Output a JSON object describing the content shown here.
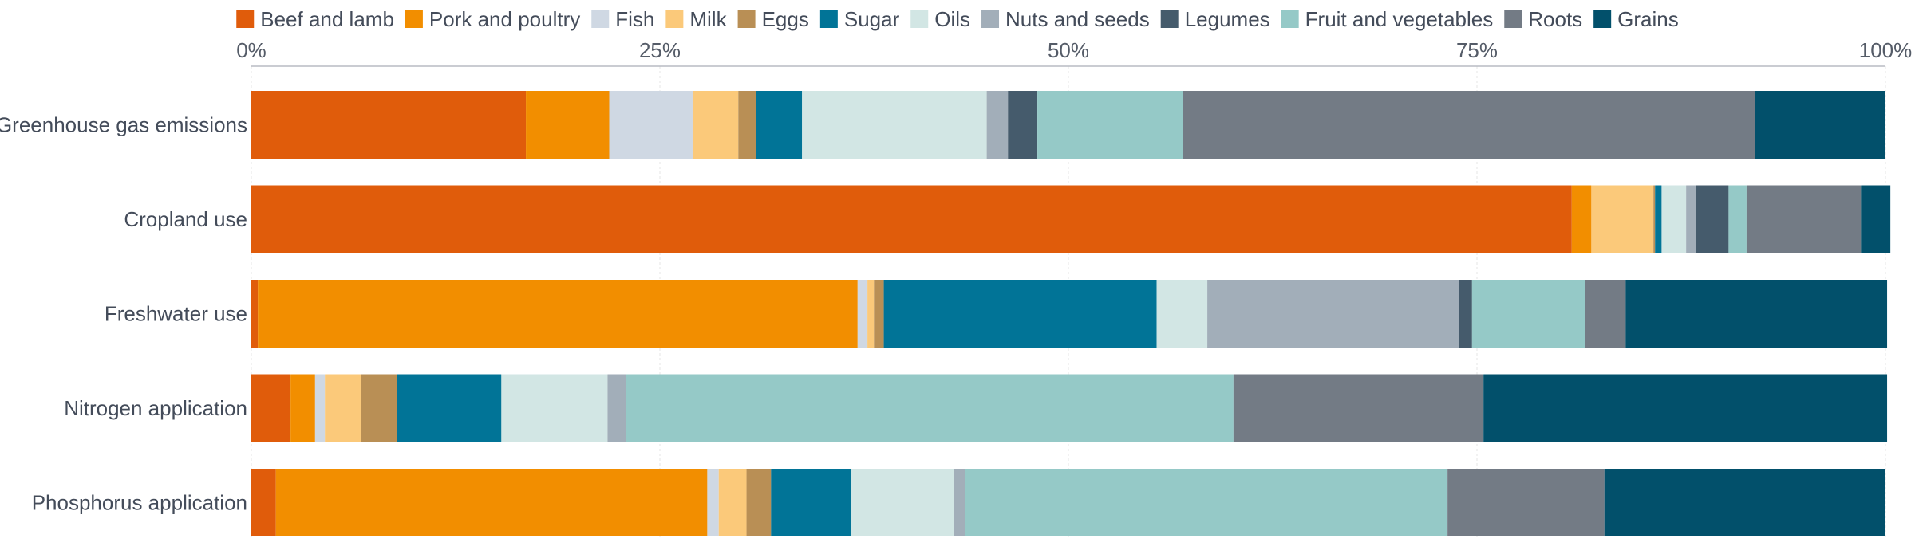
{
  "chart_data": {
    "type": "bar",
    "orientation": "horizontal",
    "stacked": true,
    "normalized": true,
    "title": "",
    "xlabel": "",
    "ylabel": "",
    "xlim": [
      0,
      100
    ],
    "x_ticks": [
      "0%",
      "25%",
      "50%",
      "75%",
      "100%"
    ],
    "x_tick_values": [
      0,
      25,
      50,
      75,
      100
    ],
    "grid": true,
    "legend_position": "top",
    "categories": [
      "Greenhouse gas emissions",
      "Cropland use",
      "Freshwater use",
      "Nitrogen application",
      "Phosphorus application"
    ],
    "series": [
      {
        "name": "Beef and lamb",
        "color": "#e05c0b",
        "values": [
          16.8,
          80.8,
          0.4,
          2.4,
          1.5
        ]
      },
      {
        "name": "Pork and poultry",
        "color": "#f28e00",
        "values": [
          5.1,
          1.2,
          36.7,
          1.5,
          26.4
        ]
      },
      {
        "name": "Fish",
        "color": "#cfd8e3",
        "values": [
          5.1,
          0.0,
          0.6,
          0.6,
          0.7
        ]
      },
      {
        "name": "Milk",
        "color": "#fbc97a",
        "values": [
          2.8,
          3.8,
          0.4,
          2.2,
          1.7
        ]
      },
      {
        "name": "Eggs",
        "color": "#b98f55",
        "values": [
          1.1,
          0.1,
          0.6,
          2.2,
          1.5
        ]
      },
      {
        "name": "Sugar",
        "color": "#017497",
        "values": [
          2.8,
          0.4,
          16.7,
          6.4,
          4.9
        ]
      },
      {
        "name": "Oils",
        "color": "#d2e6e4",
        "values": [
          11.3,
          1.5,
          3.1,
          6.5,
          6.3
        ]
      },
      {
        "name": "Nuts and seeds",
        "color": "#a2aeb9",
        "values": [
          1.3,
          0.6,
          15.4,
          1.1,
          0.7
        ]
      },
      {
        "name": "Legumes",
        "color": "#455b6c",
        "values": [
          1.8,
          2.0,
          0.8,
          0.0,
          0.0
        ]
      },
      {
        "name": "Fruit and vegetables",
        "color": "#95c9c7",
        "values": [
          8.9,
          1.1,
          6.9,
          37.2,
          29.5
        ]
      },
      {
        "name": "Roots",
        "color": "#737b85",
        "values": [
          35.0,
          7.0,
          2.5,
          15.3,
          9.6
        ]
      },
      {
        "name": "Grains",
        "color": "#02506b",
        "values": [
          8.0,
          1.8,
          16.0,
          24.7,
          17.2
        ]
      }
    ]
  }
}
